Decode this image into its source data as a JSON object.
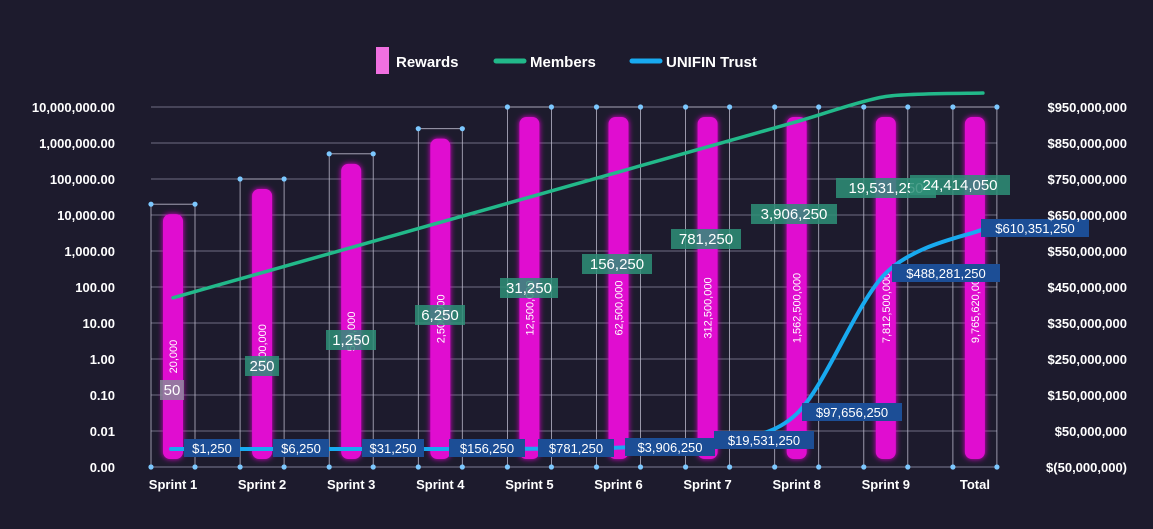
{
  "chart_data": {
    "type": "bar",
    "categories": [
      "Sprint 1",
      "Sprint 2",
      "Sprint 3",
      "Sprint 4",
      "Sprint 5",
      "Sprint 6",
      "Sprint 7",
      "Sprint 8",
      "Sprint 9",
      "Total"
    ],
    "legend": [
      "Rewards",
      "Members",
      "UNIFIN Trust"
    ],
    "legend_position": "top",
    "grid": true,
    "left_axis": {
      "scale": "log",
      "ticks": [
        "0.00",
        "0.01",
        "0.10",
        "1.00",
        "10.00",
        "100.00",
        "1,000.00",
        "10,000.00",
        "100,000.00",
        "1,000,000.00",
        "10,000,000.00"
      ]
    },
    "right_axis": {
      "scale": "linear",
      "ylim": [
        -50000000,
        950000000
      ],
      "ticks": [
        "$(50,000,000)",
        "$50,000,000",
        "$150,000,000",
        "$250,000,000",
        "$350,000,000",
        "$450,000,000",
        "$550,000,000",
        "$650,000,000",
        "$750,000,000",
        "$850,000,000",
        "$950,000,000"
      ]
    },
    "series": [
      {
        "name": "Rewards",
        "kind": "bar",
        "color": "#e010d0",
        "values": [
          20000,
          100000,
          500000,
          2500000,
          12500000,
          62500000,
          312500000,
          1562500000,
          7812500000,
          9765620000
        ],
        "labels": [
          "20,000",
          "100,000",
          "500,000",
          "2,500,000",
          "12,500,000",
          "62,500,000",
          "312,500,000",
          "1,562,500,000",
          "7,812,500,000",
          "9,765,620,000"
        ]
      },
      {
        "name": "Members",
        "kind": "line",
        "color": "#22b98a",
        "values": [
          50,
          250,
          1250,
          6250,
          31250,
          156250,
          781250,
          3906250,
          19531250,
          24414050
        ],
        "labels": [
          "50",
          "250",
          "1,250",
          "6,250",
          "31,250",
          "156,250",
          "781,250",
          "3,906,250",
          "19,531,250",
          "24,414,050"
        ]
      },
      {
        "name": "UNIFIN Trust",
        "kind": "line",
        "color": "#18aaf0",
        "values": [
          1250,
          6250,
          31250,
          156250,
          781250,
          3906250,
          19531250,
          97656250,
          488281250,
          610351250
        ],
        "labels": [
          "$1,250",
          "$6,250",
          "$31,250",
          "$156,250",
          "$781,250",
          "$3,906,250",
          "$19,531,250",
          "$97,656,250",
          "$488,281,250",
          "$610,351,250"
        ]
      }
    ]
  }
}
